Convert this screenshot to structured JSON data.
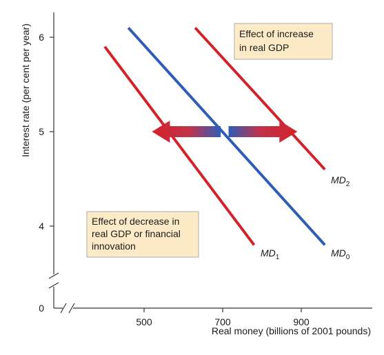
{
  "chart_data": {
    "type": "line",
    "xlabel": "Real money (billions of 2001 pounds)",
    "ylabel": "Interest rate (per cent per year)",
    "x_ticks": [
      "500",
      "700",
      "900"
    ],
    "y_ticks": [
      "4",
      "5",
      "6"
    ],
    "origin_label": "0",
    "xlim": [
      380,
      1020
    ],
    "ylim": [
      3.3,
      6.25
    ],
    "axis_breaks": true,
    "grid": false,
    "series": [
      {
        "name": "MD1",
        "label_main": "MD",
        "label_sub": "1",
        "color": "#d2232a",
        "x": [
          400,
          780
        ],
        "y": [
          5.9,
          3.8
        ]
      },
      {
        "name": "MD0",
        "label_main": "MD",
        "label_sub": "0",
        "color": "#2e5cb8",
        "x": [
          460,
          960
        ],
        "y": [
          6.1,
          3.8
        ]
      },
      {
        "name": "MD2",
        "label_main": "MD",
        "label_sub": "2",
        "color": "#d2232a",
        "x": [
          630,
          960
        ],
        "y": [
          6.1,
          4.6
        ]
      }
    ],
    "arrows": [
      {
        "direction": "left",
        "x_from": 695,
        "x_to": 520,
        "y": 5.0
      },
      {
        "direction": "right",
        "x_from": 715,
        "x_to": 890,
        "y": 5.0
      }
    ],
    "annotations": {
      "increase": {
        "lines": [
          "Effect of increase",
          "in real GDP"
        ]
      },
      "decrease": {
        "lines": [
          "Effect of decrease in",
          "real GDP or financial",
          "innovation"
        ]
      }
    }
  }
}
